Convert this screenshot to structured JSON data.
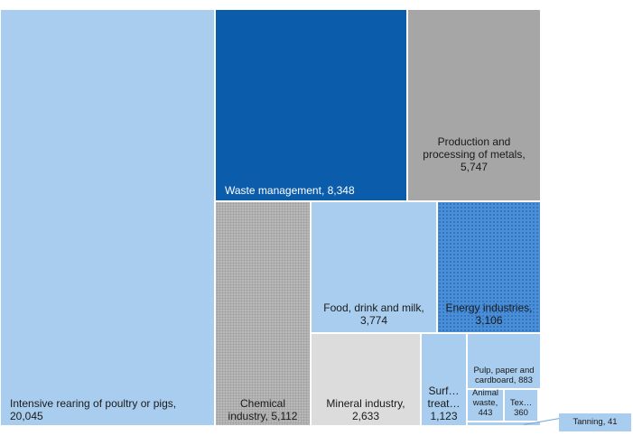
{
  "chart_data": {
    "type": "treemap",
    "title": "",
    "items": [
      {
        "label": "Intensive rearing of poultry or pigs,\n20,045",
        "name": "Intensive rearing of poultry or pigs",
        "value": 20045,
        "color": "#a9cdee"
      },
      {
        "label": "Waste management, 8,348",
        "name": "Waste management",
        "value": 8348,
        "color": "#0b5cab"
      },
      {
        "label": "Production and\nprocessing of metals,\n5,747",
        "name": "Production and processing of metals",
        "value": 5747,
        "color": "#a6a6a6"
      },
      {
        "label": "Chemical\nindustry, 5,112",
        "name": "Chemical industry",
        "value": 5112,
        "color": "#b8b8b8"
      },
      {
        "label": "Food, drink and milk,\n3,774",
        "name": "Food, drink and milk",
        "value": 3774,
        "color": "#a9cdee"
      },
      {
        "label": "Energy industries,\n3,106",
        "name": "Energy industries",
        "value": 3106,
        "color": "#4a8fd6"
      },
      {
        "label": "Mineral industry,\n2,633",
        "name": "Mineral industry",
        "value": 2633,
        "color": "#dcdcdc"
      },
      {
        "label": "Surf…\ntreat…\n1,123",
        "name": "Surf… treat…",
        "value": 1123,
        "color": "#a9cdee"
      },
      {
        "label": "Pulp, paper and\ncardboard, 883",
        "name": "Pulp, paper and cardboard",
        "value": 883,
        "color": "#a9cdee"
      },
      {
        "label": "Animal\nwaste,\n443",
        "name": "Animal waste",
        "value": 443,
        "color": "#a9cdee"
      },
      {
        "label": "Tex…\n360",
        "name": "Tex…",
        "value": 360,
        "color": "#a9cdee"
      },
      {
        "label": "Tanning, 41",
        "name": "Tanning",
        "value": 41,
        "color": "#a9cdee"
      }
    ]
  }
}
